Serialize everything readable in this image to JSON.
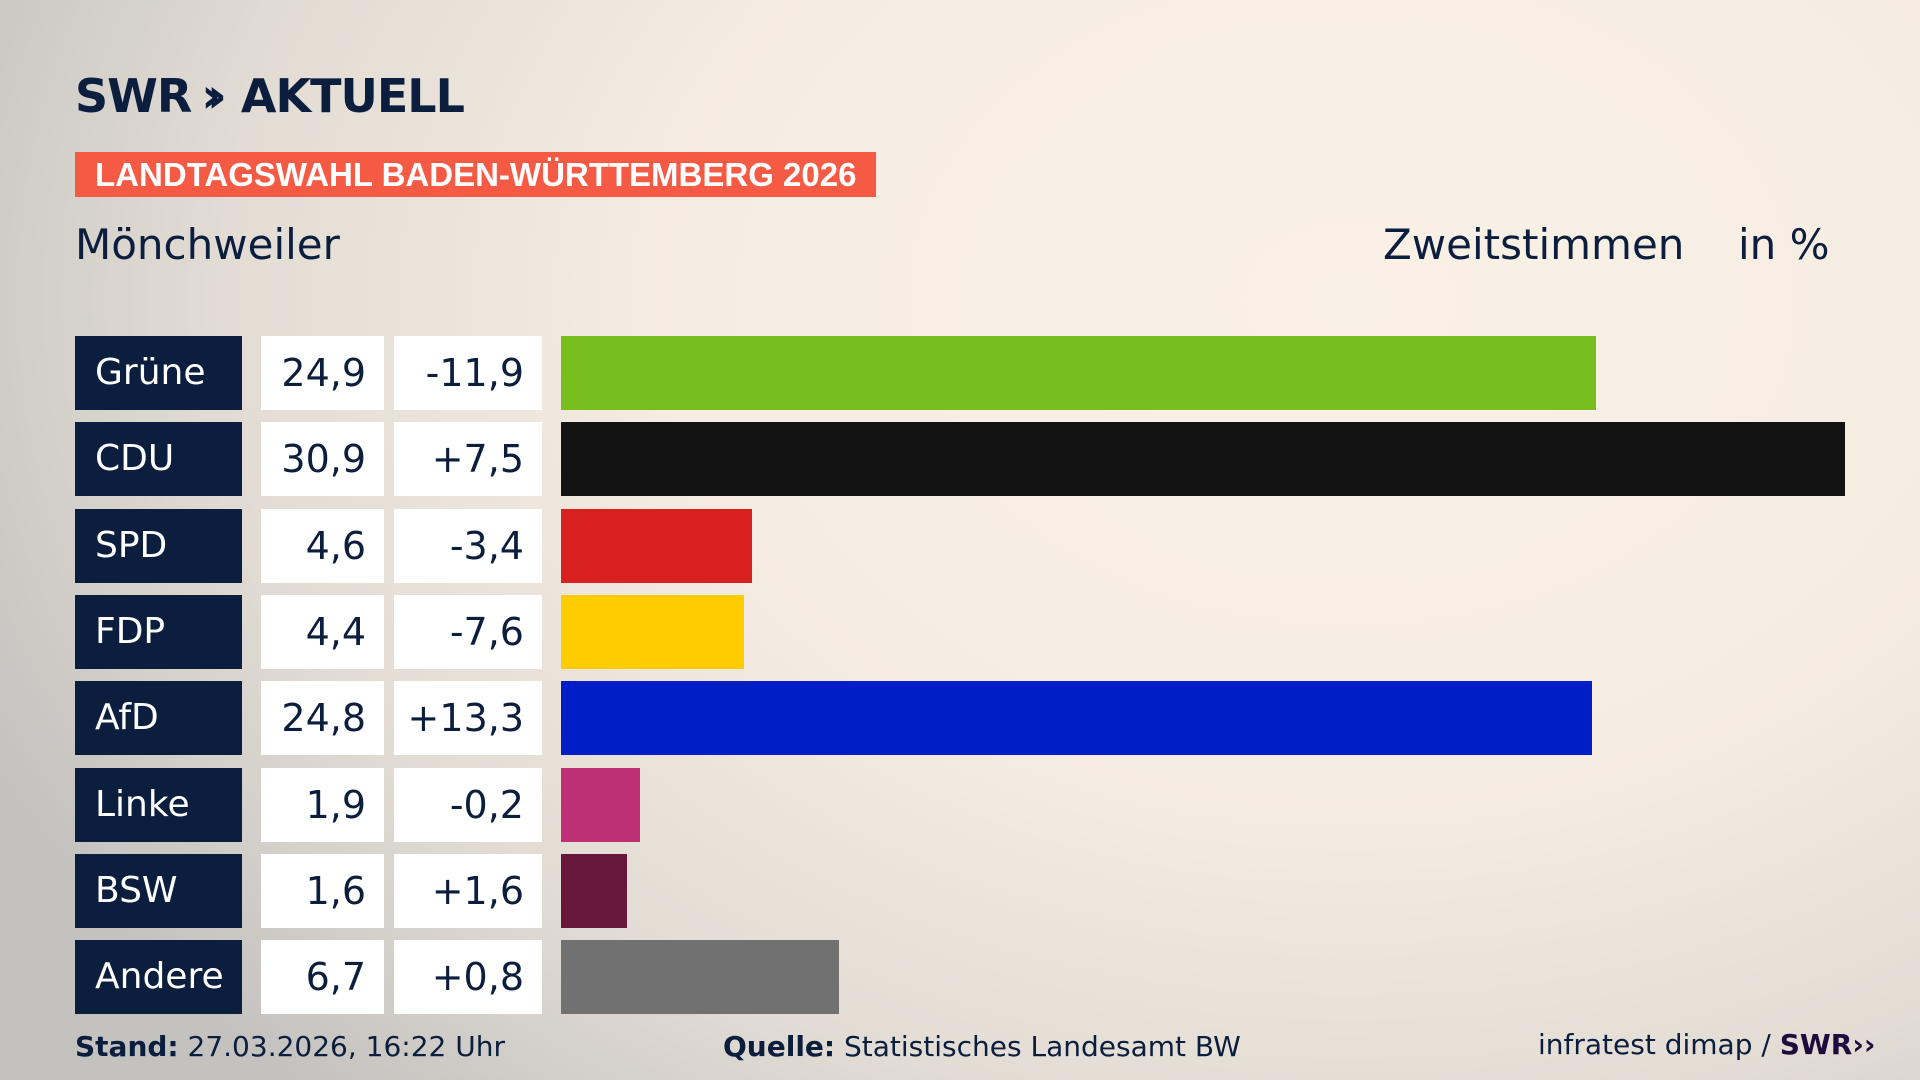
{
  "header": {
    "logo": "SWR AKTUELL",
    "logo_text": "AKTUELL",
    "logo_brand": "SWR",
    "banner": "LANDTAGSWAHL BADEN-WÜRTTEMBERG 2026",
    "place": "Mönchweiler",
    "vote_type": "Zweitstimmen",
    "unit": "in %"
  },
  "colors": {
    "navy": "#0b1e3d",
    "banner": "#f55a45"
  },
  "chart_data": {
    "type": "bar",
    "orientation": "horizontal",
    "categories": [
      "Grüne",
      "CDU",
      "SPD",
      "FDP",
      "AfD",
      "Linke",
      "BSW",
      "Andere"
    ],
    "values": [
      24.9,
      30.9,
      4.6,
      4.4,
      24.8,
      1.9,
      1.6,
      6.7
    ],
    "value_labels": [
      "24,9",
      "30,9",
      "4,6",
      "4,4",
      "24,8",
      "1,9",
      "1,6",
      "6,7"
    ],
    "change_labels": [
      "-11,9",
      "+7,5",
      "-3,4",
      "-7,6",
      "+13,3",
      "-0,2",
      "+1,6",
      "+0,8"
    ],
    "colors": [
      "#78be1e",
      "#121212",
      "#d7201f",
      "#ffcc00",
      "#001ec8",
      "#bd3075",
      "#6a173e",
      "#717171"
    ]
  },
  "footer": {
    "stand_label": "Stand:",
    "stand_value": "27.03.2026, 16:22 Uhr",
    "source_label": "Quelle:",
    "source_value": "Statistisches Landesamt BW",
    "credit": "infratest dimap /",
    "credit_brand": "SWR"
  }
}
